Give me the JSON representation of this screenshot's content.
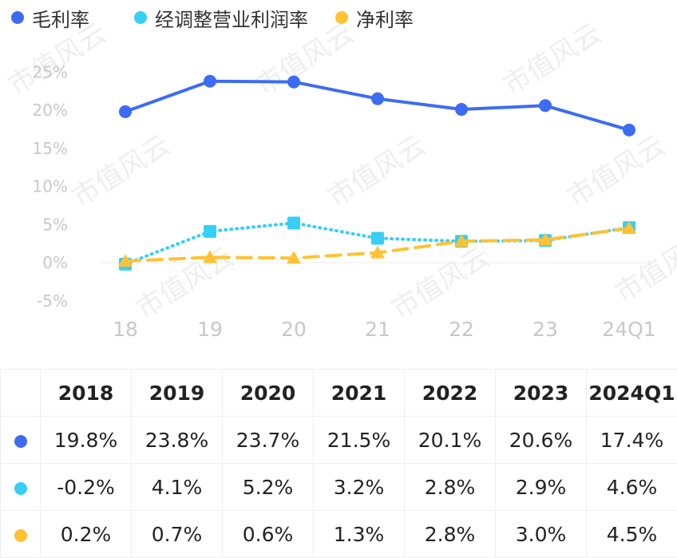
{
  "legend": [
    {
      "label": "毛利率",
      "color": "#3d6cf2"
    },
    {
      "label": "经调整营业利润率",
      "color": "#36cff5"
    },
    {
      "label": "净利率",
      "color": "#ffc233"
    }
  ],
  "watermark": "市值风云",
  "chart_data": {
    "type": "line",
    "categories": [
      "18",
      "19",
      "20",
      "21",
      "22",
      "23",
      "24Q1"
    ],
    "ylim": [
      -5,
      25
    ],
    "yticks": [
      "-5%",
      "0%",
      "5%",
      "10%",
      "15%",
      "20%",
      "25%"
    ],
    "ytick_values": [
      -5,
      0,
      5,
      10,
      15,
      20,
      25
    ],
    "grid": false,
    "legend_position": "top-left",
    "series": [
      {
        "name": "毛利率",
        "color": "#3d6cf2",
        "style": "solid",
        "marker": "circle",
        "values": [
          19.8,
          23.8,
          23.7,
          21.5,
          20.1,
          20.6,
          17.4
        ]
      },
      {
        "name": "经调整营业利润率",
        "color": "#36cff5",
        "style": "dotted",
        "marker": "square",
        "values": [
          -0.2,
          4.1,
          5.2,
          3.2,
          2.8,
          2.9,
          4.6
        ]
      },
      {
        "name": "净利率",
        "color": "#ffc233",
        "style": "dashed",
        "marker": "triangle",
        "values": [
          0.2,
          0.7,
          0.6,
          1.3,
          2.8,
          3.0,
          4.5
        ]
      }
    ]
  },
  "table": {
    "headers": [
      "",
      "2018",
      "2019",
      "2020",
      "2021",
      "2022",
      "2023",
      "2024Q1"
    ],
    "rows": [
      {
        "color": "#3d6cf2",
        "values": [
          "19.8%",
          "23.8%",
          "23.7%",
          "21.5%",
          "20.1%",
          "20.6%",
          "17.4%"
        ]
      },
      {
        "color": "#36cff5",
        "values": [
          "-0.2%",
          "4.1%",
          "5.2%",
          "3.2%",
          "2.8%",
          "2.9%",
          "4.6%"
        ]
      },
      {
        "color": "#ffc233",
        "values": [
          "0.2%",
          "0.7%",
          "0.6%",
          "1.3%",
          "2.8%",
          "3.0%",
          "4.5%"
        ]
      }
    ]
  }
}
